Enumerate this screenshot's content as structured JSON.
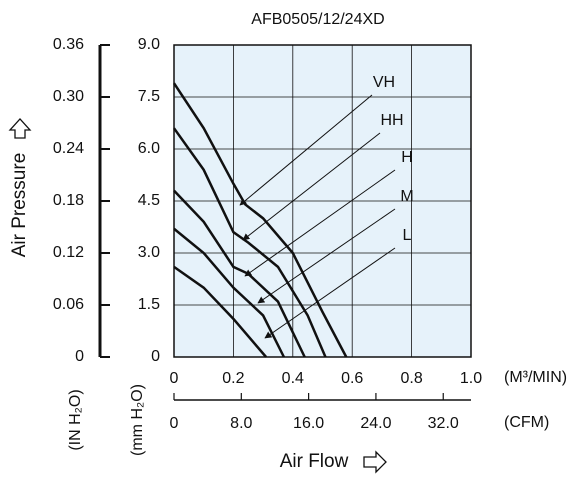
{
  "chart_data": {
    "type": "line",
    "title": "AFB0505/12/24XD",
    "x_label": "Air Flow",
    "y_label": "Air Pressure",
    "x_unit": "(M³/MIN)",
    "x2_unit": "(CFM)",
    "y_unit": "(mm H₂O)",
    "y2_unit": "(IN H₂O)",
    "xlim": [
      0,
      1.0
    ],
    "xticks": [
      0,
      {
        "value": 0.2,
        "label": "0.2"
      },
      {
        "value": 0.4,
        "label": "0.4"
      },
      {
        "value": 0.6,
        "label": "0.6"
      },
      {
        "value": 0.8,
        "label": "0.8"
      },
      {
        "value": 1.0,
        "label": "1.0"
      }
    ],
    "x2lim": [
      0,
      35.3
    ],
    "x2ticks": [
      0,
      {
        "value": 8,
        "label": "8.0"
      },
      {
        "value": 16,
        "label": "16.0"
      },
      {
        "value": 24,
        "label": "24.0"
      },
      {
        "value": 32,
        "label": "32.0"
      }
    ],
    "ylim": [
      0,
      9
    ],
    "yticks": [
      0,
      1.5,
      {
        "value": 3,
        "label": "3.0"
      },
      4.5,
      {
        "value": 6,
        "label": "6.0"
      },
      7.5,
      {
        "value": 9,
        "label": "9.0"
      }
    ],
    "y2lim": [
      0,
      0.36
    ],
    "y2ticks": [
      0,
      0.06,
      0.12,
      0.18,
      0.24,
      {
        "value": 0.3,
        "label": "0.30"
      },
      0.36
    ],
    "grid": true,
    "series": [
      {
        "name": "VH",
        "color": "#111111",
        "x": [
          0,
          0.1,
          0.2,
          0.24,
          0.3,
          0.4,
          0.5,
          0.58
        ],
        "values": [
          7.9,
          6.6,
          5.0,
          4.4,
          4.0,
          3.0,
          1.3,
          0
        ]
      },
      {
        "name": "HH",
        "color": "#111111",
        "x": [
          0,
          0.1,
          0.2,
          0.25,
          0.35,
          0.45,
          0.51
        ],
        "values": [
          6.6,
          5.4,
          3.6,
          3.3,
          2.6,
          1.2,
          0
        ]
      },
      {
        "name": "H",
        "color": "#111111",
        "x": [
          0,
          0.1,
          0.2,
          0.25,
          0.35,
          0.44
        ],
        "values": [
          4.8,
          3.9,
          2.6,
          2.4,
          1.6,
          0
        ]
      },
      {
        "name": "M",
        "color": "#111111",
        "x": [
          0,
          0.1,
          0.2,
          0.3,
          0.37
        ],
        "values": [
          3.7,
          3.0,
          2.0,
          1.2,
          0
        ]
      },
      {
        "name": "L",
        "color": "#111111",
        "x": [
          0,
          0.1,
          0.2,
          0.31
        ],
        "values": [
          2.6,
          2.0,
          1.1,
          0
        ]
      }
    ]
  }
}
